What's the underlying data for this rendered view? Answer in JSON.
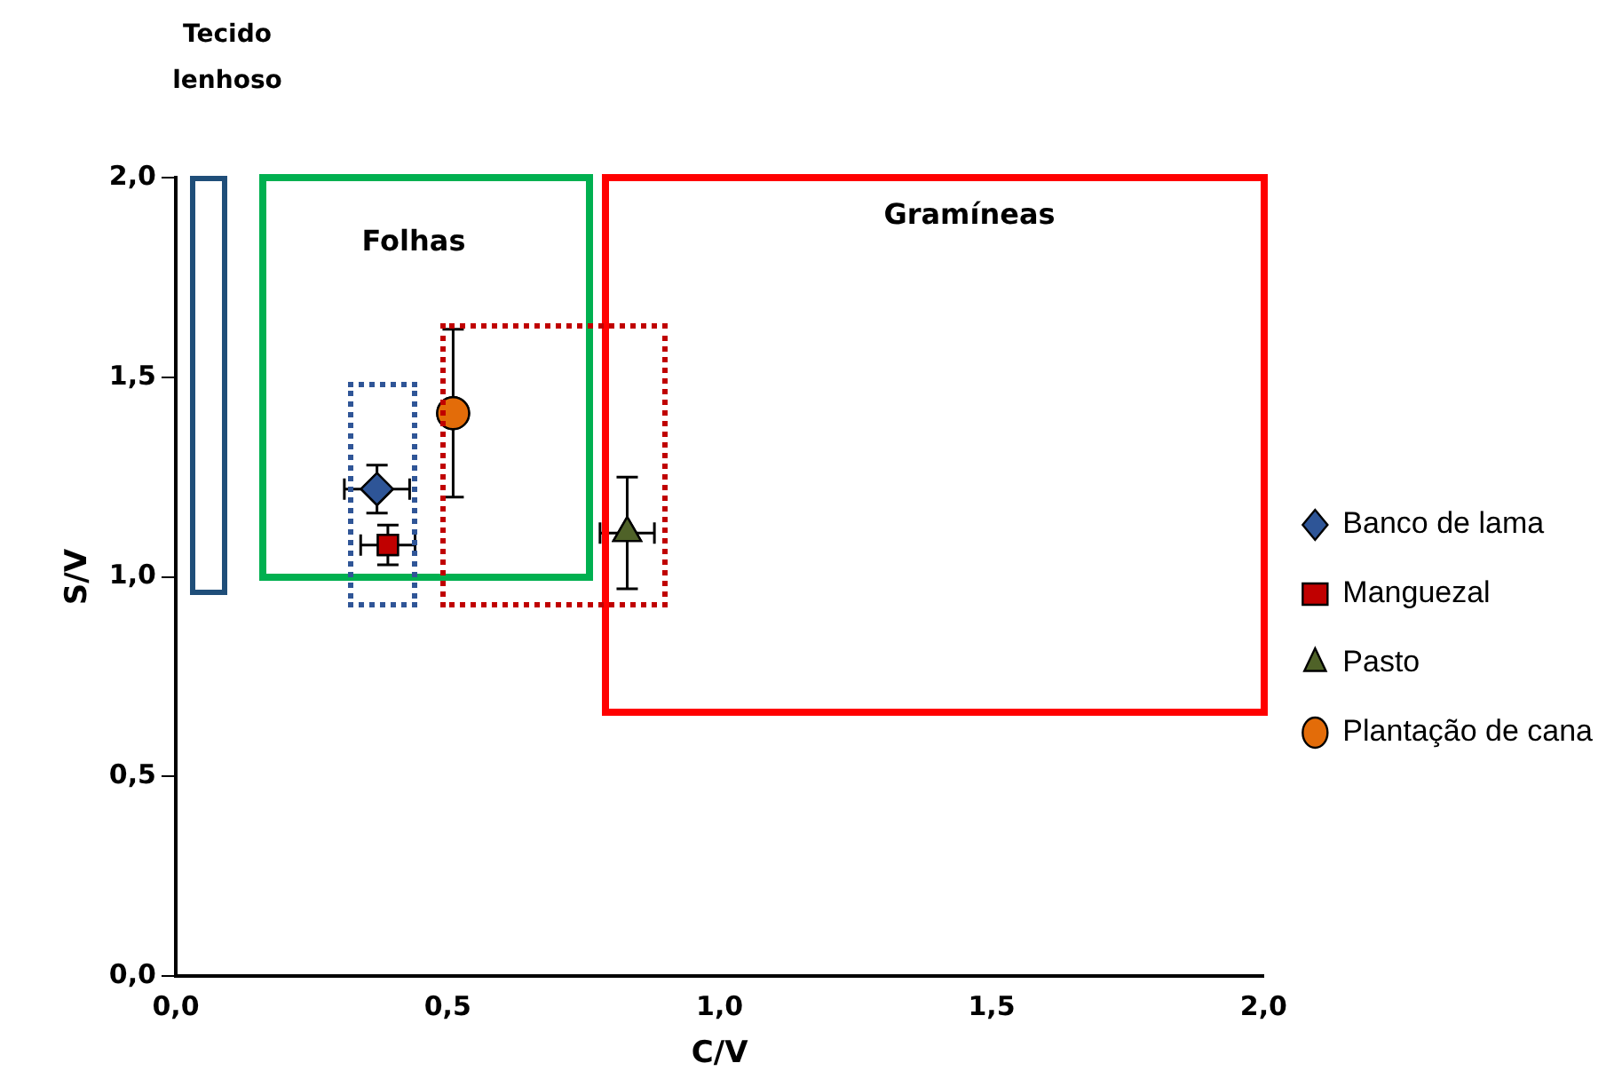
{
  "chart_data": {
    "type": "scatter",
    "xlabel": "C/V",
    "ylabel": "S/V",
    "xlim": [
      0,
      2
    ],
    "ylim": [
      0,
      2
    ],
    "xticks": [
      {
        "value": 0,
        "label": "0,0"
      },
      {
        "value": 0.5,
        "label": "0,5"
      },
      {
        "value": 1,
        "label": "1,0"
      },
      {
        "value": 1.5,
        "label": "1,5"
      },
      {
        "value": 2,
        "label": "2,0"
      }
    ],
    "yticks": [
      {
        "value": 0,
        "label": "0,0"
      },
      {
        "value": 0.5,
        "label": "0,5"
      },
      {
        "value": 1,
        "label": "1,0"
      },
      {
        "value": 1.5,
        "label": "1,5"
      },
      {
        "value": 2,
        "label": "2,0"
      }
    ],
    "grid": false,
    "legend": "right",
    "annotations": [
      "Tecido lenhoso",
      "Folhas",
      "Gramíneas"
    ],
    "series": [
      {
        "name": "Banco de lama",
        "marker": "diamond",
        "color": "#2e5597",
        "x": [
          0.37
        ],
        "values": [
          1.22
        ],
        "errors": [
          0.06
        ],
        "xerrors": [
          0.06
        ]
      },
      {
        "name": "Manguezal",
        "marker": "square",
        "color": "#c00000",
        "x": [
          0.39
        ],
        "values": [
          1.08
        ],
        "errors": [
          0.05
        ],
        "xerrors": [
          0.05
        ]
      },
      {
        "name": "Pasto",
        "marker": "triangle",
        "color": "#4f6228",
        "x": [
          0.83
        ],
        "values": [
          1.11
        ],
        "errors": [
          0.14
        ],
        "xerrors": [
          0.05
        ]
      },
      {
        "name": "Plantação de cana",
        "marker": "circle",
        "color": "#e36c09",
        "x": [
          0.51
        ],
        "values": [
          1.41
        ],
        "errors": [
          0.21
        ],
        "xerrors": [
          null
        ]
      }
    ]
  }
}
